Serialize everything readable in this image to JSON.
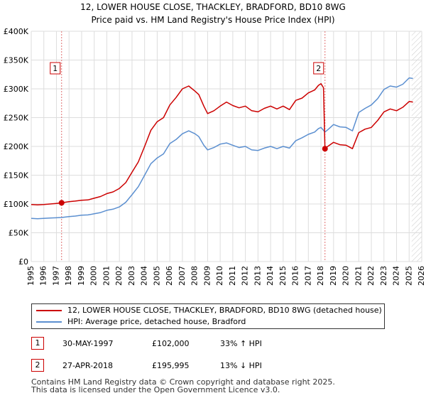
{
  "chart_data": {
    "type": "line",
    "title": "12, LOWER HOUSE CLOSE, THACKLEY, BRADFORD, BD10 8WG",
    "subtitle": "Price paid vs. HM Land Registry's House Price Index (HPI)",
    "xlim": [
      1995,
      2026
    ],
    "ylim": [
      0,
      400000
    ],
    "x_ticks": [
      "1995",
      "1996",
      "1997",
      "1998",
      "1999",
      "2000",
      "2001",
      "2002",
      "2003",
      "2004",
      "2005",
      "2006",
      "2007",
      "2008",
      "2009",
      "2010",
      "2011",
      "2012",
      "2013",
      "2014",
      "2015",
      "2016",
      "2017",
      "2018",
      "2019",
      "2020",
      "2021",
      "2022",
      "2023",
      "2024",
      "2025",
      "2026"
    ],
    "y_ticks": [
      {
        "value": 0,
        "label": "£0"
      },
      {
        "value": 50000,
        "label": "£50K"
      },
      {
        "value": 100000,
        "label": "£100K"
      },
      {
        "value": 150000,
        "label": "£150K"
      },
      {
        "value": 200000,
        "label": "£200K"
      },
      {
        "value": 250000,
        "label": "£250K"
      },
      {
        "value": 300000,
        "label": "£300K"
      },
      {
        "value": 350000,
        "label": "£350K"
      },
      {
        "value": 400000,
        "label": "£400K"
      }
    ],
    "forecast_start": 2025.2,
    "series": [
      {
        "name": "12, LOWER HOUSE CLOSE, THACKLEY, BRADFORD, BD10 8WG (detached house)",
        "color": "#cc0000",
        "points": [
          [
            1995.0,
            99000
          ],
          [
            1995.5,
            98500
          ],
          [
            1996.0,
            99000
          ],
          [
            1996.5,
            100000
          ],
          [
            1997.0,
            101000
          ],
          [
            1997.41,
            102000
          ],
          [
            1998.0,
            104000
          ],
          [
            1998.5,
            105000
          ],
          [
            1999.0,
            106500
          ],
          [
            1999.5,
            107000
          ],
          [
            2000.0,
            110000
          ],
          [
            2000.5,
            113000
          ],
          [
            2001.0,
            118000
          ],
          [
            2001.5,
            121000
          ],
          [
            2002.0,
            127000
          ],
          [
            2002.5,
            137000
          ],
          [
            2003.0,
            155000
          ],
          [
            2003.5,
            173000
          ],
          [
            2004.0,
            200000
          ],
          [
            2004.5,
            228000
          ],
          [
            2005.0,
            243000
          ],
          [
            2005.5,
            250000
          ],
          [
            2006.0,
            272000
          ],
          [
            2006.5,
            285000
          ],
          [
            2007.0,
            300000
          ],
          [
            2007.5,
            305000
          ],
          [
            2008.0,
            296000
          ],
          [
            2008.3,
            290000
          ],
          [
            2008.7,
            270000
          ],
          [
            2009.0,
            257000
          ],
          [
            2009.5,
            262000
          ],
          [
            2010.0,
            270000
          ],
          [
            2010.5,
            277000
          ],
          [
            2011.0,
            271000
          ],
          [
            2011.5,
            267000
          ],
          [
            2012.0,
            270000
          ],
          [
            2012.5,
            262000
          ],
          [
            2013.0,
            260000
          ],
          [
            2013.5,
            266000
          ],
          [
            2014.0,
            270000
          ],
          [
            2014.5,
            265000
          ],
          [
            2015.0,
            270000
          ],
          [
            2015.5,
            264000
          ],
          [
            2016.0,
            280000
          ],
          [
            2016.5,
            284000
          ],
          [
            2017.0,
            293000
          ],
          [
            2017.5,
            298000
          ],
          [
            2017.8,
            306000
          ],
          [
            2018.0,
            309000
          ],
          [
            2018.2,
            302000
          ],
          [
            2018.32,
            195995
          ],
          [
            2018.6,
            201000
          ],
          [
            2019.0,
            207000
          ],
          [
            2019.5,
            203000
          ],
          [
            2020.0,
            202000
          ],
          [
            2020.5,
            196000
          ],
          [
            2021.0,
            224000
          ],
          [
            2021.5,
            230000
          ],
          [
            2022.0,
            233000
          ],
          [
            2022.5,
            245000
          ],
          [
            2023.0,
            260000
          ],
          [
            2023.5,
            265000
          ],
          [
            2024.0,
            262000
          ],
          [
            2024.5,
            268000
          ],
          [
            2025.0,
            278000
          ],
          [
            2025.3,
            277000
          ]
        ]
      },
      {
        "name": "HPI: Average price, detached house, Bradford",
        "color": "#5b8fd0",
        "points": [
          [
            1995.0,
            75000
          ],
          [
            1995.5,
            74500
          ],
          [
            1996.0,
            75000
          ],
          [
            1996.5,
            75500
          ],
          [
            1997.0,
            76000
          ],
          [
            1997.41,
            76500
          ],
          [
            1998.0,
            78000
          ],
          [
            1998.5,
            79000
          ],
          [
            1999.0,
            80500
          ],
          [
            1999.5,
            81000
          ],
          [
            2000.0,
            83000
          ],
          [
            2000.5,
            85000
          ],
          [
            2001.0,
            89000
          ],
          [
            2001.5,
            91000
          ],
          [
            2002.0,
            95000
          ],
          [
            2002.5,
            103000
          ],
          [
            2003.0,
            116000
          ],
          [
            2003.5,
            130000
          ],
          [
            2004.0,
            150000
          ],
          [
            2004.5,
            170000
          ],
          [
            2005.0,
            180000
          ],
          [
            2005.5,
            187000
          ],
          [
            2006.0,
            205000
          ],
          [
            2006.5,
            212000
          ],
          [
            2007.0,
            222000
          ],
          [
            2007.5,
            227000
          ],
          [
            2008.0,
            222000
          ],
          [
            2008.3,
            217000
          ],
          [
            2008.7,
            202000
          ],
          [
            2009.0,
            194000
          ],
          [
            2009.5,
            198000
          ],
          [
            2010.0,
            204000
          ],
          [
            2010.5,
            206000
          ],
          [
            2011.0,
            202000
          ],
          [
            2011.5,
            198000
          ],
          [
            2012.0,
            200000
          ],
          [
            2012.5,
            194000
          ],
          [
            2013.0,
            193000
          ],
          [
            2013.5,
            197000
          ],
          [
            2014.0,
            200000
          ],
          [
            2014.5,
            196000
          ],
          [
            2015.0,
            200000
          ],
          [
            2015.5,
            197000
          ],
          [
            2016.0,
            210000
          ],
          [
            2016.5,
            215000
          ],
          [
            2017.0,
            221000
          ],
          [
            2017.5,
            225000
          ],
          [
            2017.8,
            231000
          ],
          [
            2018.0,
            233000
          ],
          [
            2018.32,
            225000
          ],
          [
            2018.6,
            230000
          ],
          [
            2019.0,
            238000
          ],
          [
            2019.5,
            234000
          ],
          [
            2020.0,
            233000
          ],
          [
            2020.5,
            227000
          ],
          [
            2021.0,
            259000
          ],
          [
            2021.5,
            266000
          ],
          [
            2022.0,
            272000
          ],
          [
            2022.5,
            283000
          ],
          [
            2023.0,
            299000
          ],
          [
            2023.5,
            305000
          ],
          [
            2024.0,
            303000
          ],
          [
            2024.5,
            308000
          ],
          [
            2025.0,
            319000
          ],
          [
            2025.3,
            318000
          ]
        ]
      }
    ],
    "sales": [
      {
        "marker": "1",
        "x": 1997.41,
        "y": 102000
      },
      {
        "marker": "2",
        "x": 2018.32,
        "y": 195995
      }
    ]
  },
  "legend": {
    "property_label": "12, LOWER HOUSE CLOSE, THACKLEY, BRADFORD, BD10 8WG (detached house)",
    "hpi_label": "HPI: Average price, detached house, Bradford"
  },
  "sales_table": [
    {
      "marker": "1",
      "date": "30-MAY-1997",
      "price": "£102,000",
      "delta": "33% ↑ HPI"
    },
    {
      "marker": "2",
      "date": "27-APR-2018",
      "price": "£195,995",
      "delta": "13% ↓ HPI"
    }
  ],
  "footer": {
    "line1": "Contains HM Land Registry data © Crown copyright and database right 2025.",
    "line2": "This data is licensed under the Open Government Licence v3.0."
  }
}
